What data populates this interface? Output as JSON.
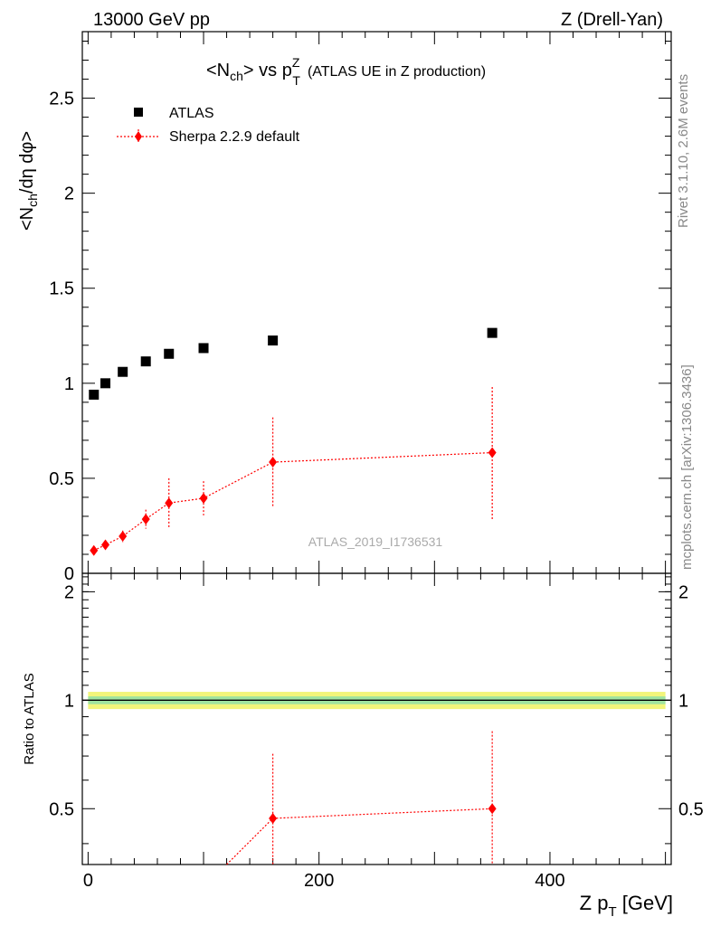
{
  "header": {
    "energy_label": "13000 GeV pp",
    "process_label": "Z (Drell-Yan)"
  },
  "side_labels": {
    "rivet": "Rivet 3.1.10,  2.6M events",
    "mcplots": "mcplots.cern.ch [arXiv:1306.3436]"
  },
  "watermark": "ATLAS_2019_I1736531",
  "chart_data": [
    {
      "type": "scatter",
      "title_main": "<N",
      "title_sub1": "ch",
      "title_mid": "> vs p",
      "title_sup": "Z",
      "title_sub2": "T",
      "title_extra": "(ATLAS UE in Z production)",
      "ylabel_pre": "<N",
      "ylabel_sub": "ch",
      "ylabel_post": "/dη dφ>",
      "xlim": [
        -5,
        505
      ],
      "ylim": [
        0,
        2.85
      ],
      "yticks": [
        {
          "v": 0,
          "label": "0"
        },
        {
          "v": 0.5,
          "label": "0.5"
        },
        {
          "v": 1,
          "label": "1"
        },
        {
          "v": 1.5,
          "label": "1.5"
        },
        {
          "v": 2,
          "label": "2"
        },
        {
          "v": 2.5,
          "label": "2.5"
        }
      ],
      "legend_position": "top-left",
      "series": [
        {
          "name": "ATLAS",
          "color": "#000000",
          "marker": "square",
          "x": [
            5,
            15,
            30,
            50,
            70,
            100,
            160,
            350
          ],
          "y": [
            0.94,
            1.0,
            1.06,
            1.115,
            1.155,
            1.185,
            1.225,
            1.265
          ]
        },
        {
          "name": "Sherpa 2.2.9 default",
          "color": "#ff0000",
          "marker": "diamond",
          "x": [
            5,
            15,
            30,
            50,
            70,
            100,
            160,
            350
          ],
          "y": [
            0.12,
            0.15,
            0.195,
            0.285,
            0.37,
            0.395,
            0.585,
            0.635
          ],
          "yerr_low": [
            0.02,
            0.025,
            0.03,
            0.05,
            0.13,
            0.09,
            0.235,
            0.35
          ],
          "yerr_high": [
            0.02,
            0.025,
            0.03,
            0.05,
            0.13,
            0.09,
            0.235,
            0.345
          ]
        }
      ]
    },
    {
      "type": "scatter",
      "ylabel": "Ratio to ATLAS",
      "xlabel_pre": "Z p",
      "xlabel_sub": "T",
      "xlabel_post": " [GeV]",
      "xlim": [
        -5,
        505
      ],
      "ylim": [
        0.35,
        2.25
      ],
      "xticks": [
        {
          "v": 0,
          "label": "0"
        },
        {
          "v": 200,
          "label": "200"
        },
        {
          "v": 400,
          "label": "400"
        }
      ],
      "yticks": [
        {
          "v": 0.5,
          "label": "0.5"
        },
        {
          "v": 1,
          "label": "1"
        },
        {
          "v": 2,
          "label": "2"
        }
      ],
      "reference_line": 1,
      "band_color_outer": "#f2f57a",
      "band_color_inner": "#9fe39f",
      "series": [
        {
          "name": "Sherpa 2.2.9 default",
          "color": "#ff0000",
          "marker": "diamond",
          "x": [
            120,
            160,
            350
          ],
          "y": [
            0.32,
            0.47,
            0.5
          ],
          "yerr_low": [
            0,
            0.25,
            0.35
          ],
          "yerr_high": [
            0,
            0.24,
            0.32
          ]
        }
      ]
    }
  ]
}
